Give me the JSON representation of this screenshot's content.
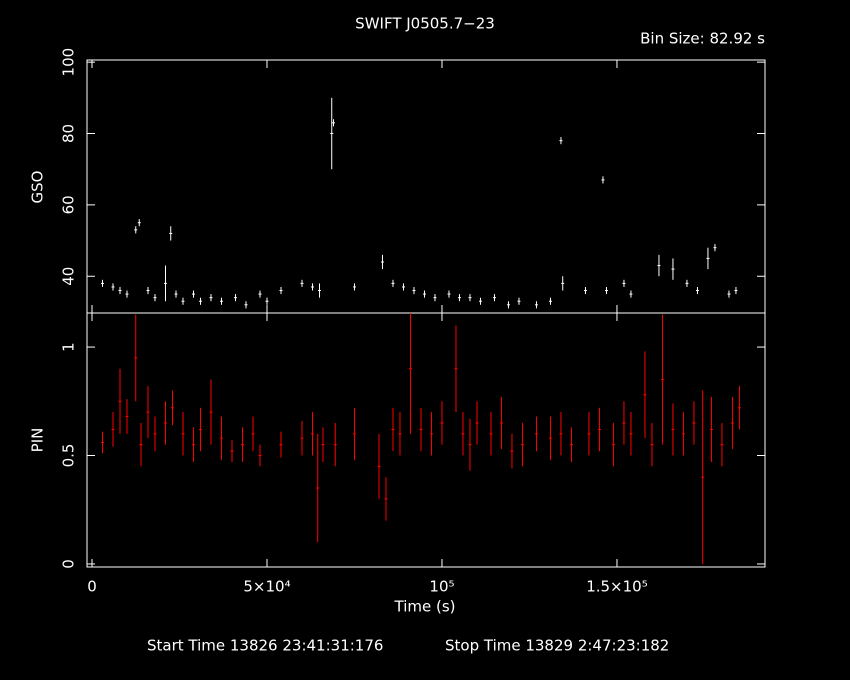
{
  "chart_data": [
    {
      "type": "errorbar",
      "title": "SWIFT J0505.7−23",
      "subtitle": "Bin Size: 82.92 s",
      "ylabel": "GSO",
      "color": "#ffffff",
      "xlim": [
        -1430,
        192300
      ],
      "ylim": [
        29.7,
        100.6
      ],
      "yticks": [
        40,
        60,
        80,
        100
      ],
      "x": [
        3000,
        6000,
        8000,
        10000,
        12500,
        13500,
        16000,
        18000,
        21000,
        22500,
        24000,
        26000,
        29000,
        31000,
        34000,
        37000,
        41000,
        44000,
        48000,
        50000,
        54000,
        60000,
        63000,
        65000,
        68500,
        69000,
        75000,
        83000,
        86000,
        89000,
        92000,
        95000,
        98000,
        102000,
        105000,
        108000,
        111000,
        115000,
        119000,
        122000,
        127000,
        131000,
        134000,
        134500,
        141000,
        146000,
        147000,
        152000,
        154000,
        162000,
        166000,
        170000,
        173000,
        176000,
        178000,
        182000,
        184000
      ],
      "values": [
        38,
        37,
        36,
        35,
        53,
        55,
        36,
        34,
        38,
        52,
        35,
        33,
        35,
        33,
        34,
        33,
        34,
        32,
        35,
        33,
        36,
        38,
        37,
        36,
        80,
        83,
        37,
        44,
        38,
        37,
        36,
        35,
        34,
        35,
        34,
        34,
        33,
        34,
        32,
        33,
        32,
        33,
        78,
        38,
        36,
        67,
        36,
        38,
        35,
        43,
        42,
        38,
        36,
        45,
        48,
        35,
        36
      ],
      "errors": [
        1,
        1,
        1,
        1,
        1,
        1,
        1,
        1,
        5,
        2,
        1,
        1,
        1,
        1,
        1,
        1,
        1,
        1,
        1,
        1,
        1,
        1,
        1,
        2,
        10,
        1,
        1,
        2,
        1,
        1,
        1,
        1,
        1,
        1,
        1,
        1,
        1,
        1,
        1,
        1,
        1,
        1,
        1,
        2,
        1,
        1,
        1,
        1,
        1,
        3,
        3,
        1,
        1,
        3,
        1,
        1,
        1
      ]
    },
    {
      "type": "errorbar",
      "ylabel": "PIN",
      "xlabel": "Time (s)",
      "color": "#ff0000",
      "xlim": [
        -1430,
        192300
      ],
      "ylim": [
        -0.014,
        1.157
      ],
      "yticks": [
        0,
        0.5,
        1
      ],
      "xticks": [
        0,
        {
          "value": 50000,
          "label": "5×10⁴"
        },
        {
          "value": 100000,
          "label": "10⁵"
        },
        {
          "value": 150000,
          "label": "1.5×10⁵"
        }
      ],
      "annotations": [
        "Start Time 13826 23:41:31:176",
        "Stop Time 13829  2:47:23:182"
      ],
      "x": [
        3000,
        6000,
        8000,
        10000,
        12500,
        14000,
        16000,
        18000,
        21000,
        23000,
        26000,
        29000,
        31000,
        34000,
        37000,
        40000,
        43000,
        46000,
        48000,
        54000,
        60000,
        63000,
        64500,
        66000,
        69500,
        75000,
        82000,
        84000,
        86000,
        88000,
        91000,
        94000,
        97000,
        100000,
        104000,
        106000,
        108000,
        110000,
        114000,
        117000,
        120000,
        123000,
        127000,
        131000,
        134000,
        137000,
        142000,
        145000,
        149000,
        152000,
        154000,
        158000,
        160000,
        163000,
        166000,
        169000,
        172000,
        174500,
        177000,
        180000,
        183000,
        185000
      ],
      "values": [
        0.56,
        0.62,
        0.75,
        0.68,
        0.95,
        0.55,
        0.7,
        0.6,
        0.65,
        0.72,
        0.6,
        0.55,
        0.62,
        0.7,
        0.58,
        0.52,
        0.55,
        0.6,
        0.5,
        0.55,
        0.58,
        0.6,
        0.35,
        0.55,
        0.55,
        0.6,
        0.45,
        0.3,
        0.62,
        0.6,
        0.9,
        0.62,
        0.6,
        0.65,
        0.9,
        0.6,
        0.55,
        0.65,
        0.6,
        0.65,
        0.52,
        0.55,
        0.6,
        0.58,
        0.6,
        0.55,
        0.6,
        0.62,
        0.55,
        0.65,
        0.6,
        0.78,
        0.55,
        0.85,
        0.62,
        0.6,
        0.65,
        0.4,
        0.62,
        0.55,
        0.65,
        0.72
      ],
      "errors": [
        0.05,
        0.08,
        0.15,
        0.08,
        0.2,
        0.1,
        0.12,
        0.08,
        0.1,
        0.08,
        0.1,
        0.08,
        0.1,
        0.15,
        0.1,
        0.05,
        0.08,
        0.08,
        0.05,
        0.06,
        0.08,
        0.1,
        0.25,
        0.08,
        0.1,
        0.12,
        0.15,
        0.1,
        0.1,
        0.1,
        0.3,
        0.1,
        0.1,
        0.1,
        0.2,
        0.1,
        0.12,
        0.1,
        0.1,
        0.12,
        0.08,
        0.1,
        0.08,
        0.1,
        0.1,
        0.08,
        0.1,
        0.1,
        0.1,
        0.1,
        0.1,
        0.2,
        0.1,
        0.3,
        0.12,
        0.1,
        0.1,
        0.4,
        0.15,
        0.1,
        0.12,
        0.1
      ]
    }
  ]
}
